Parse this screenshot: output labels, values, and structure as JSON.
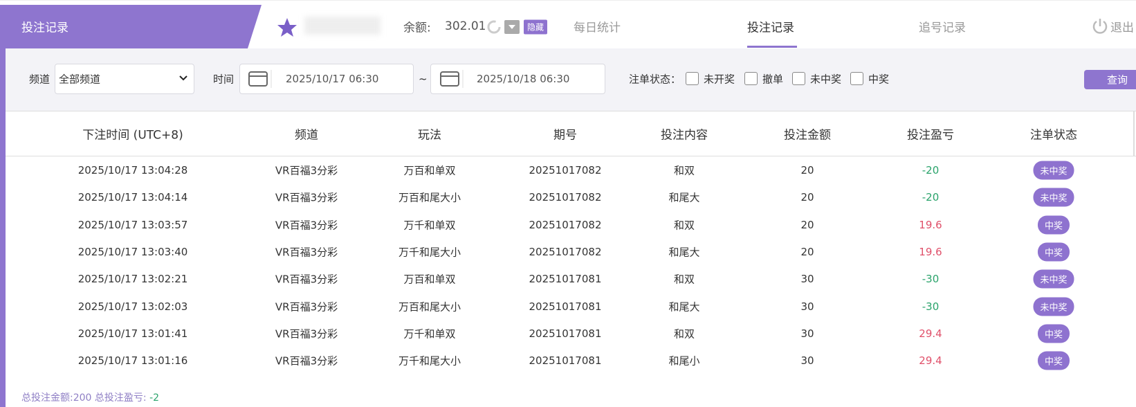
{
  "header": {
    "tab": "投注记录",
    "balance_label": "余额:",
    "balance": "302.01",
    "hide_badge": "隐藏",
    "nav": [
      "每日统计",
      "投注记录",
      "追号记录"
    ],
    "logout": "退出"
  },
  "filters": {
    "channel_label": "频道",
    "channel_value": "全部频道",
    "time_label": "时间",
    "start": "2025/10/17 06:30",
    "separator": "~",
    "end": "2025/10/18 06:30",
    "status_label": "注单状态：",
    "statuses": [
      "未开奖",
      "撤单",
      "未中奖",
      "中奖"
    ],
    "query": "查询"
  },
  "table": {
    "columns": [
      "下注时间 (UTC+8)",
      "频道",
      "玩法",
      "期号",
      "投注内容",
      "投注金额",
      "投注盈亏",
      "注单状态"
    ],
    "rows": [
      [
        "2025/10/17 13:04:28",
        "VR百福3分彩",
        "万百和单双",
        "20251017082",
        "和双",
        20,
        -20,
        "未中奖"
      ],
      [
        "2025/10/17 13:04:14",
        "VR百福3分彩",
        "万百和尾大小",
        "20251017082",
        "和尾大",
        20,
        -20,
        "未中奖"
      ],
      [
        "2025/10/17 13:03:57",
        "VR百福3分彩",
        "万千和单双",
        "20251017082",
        "和双",
        20,
        19.6,
        "中奖"
      ],
      [
        "2025/10/17 13:03:40",
        "VR百福3分彩",
        "万千和尾大小",
        "20251017082",
        "和尾大",
        20,
        19.6,
        "中奖"
      ],
      [
        "2025/10/17 13:02:21",
        "VR百福3分彩",
        "万百和单双",
        "20251017081",
        "和双",
        30,
        -30,
        "未中奖"
      ],
      [
        "2025/10/17 13:02:03",
        "VR百福3分彩",
        "万百和尾大小",
        "20251017081",
        "和尾大",
        30,
        -30,
        "未中奖"
      ],
      [
        "2025/10/17 13:01:41",
        "VR百福3分彩",
        "万千和单双",
        "20251017081",
        "和双",
        30,
        29.4,
        "中奖"
      ],
      [
        "2025/10/17 13:01:16",
        "VR百福3分彩",
        "万千和尾大小",
        "20251017081",
        "和尾小",
        30,
        29.4,
        "中奖"
      ]
    ]
  },
  "footer": {
    "total_amount_label": "总投注金额:",
    "total_amount": 200,
    "total_profit_label": "总投注盈亏:",
    "total_profit": -2
  }
}
